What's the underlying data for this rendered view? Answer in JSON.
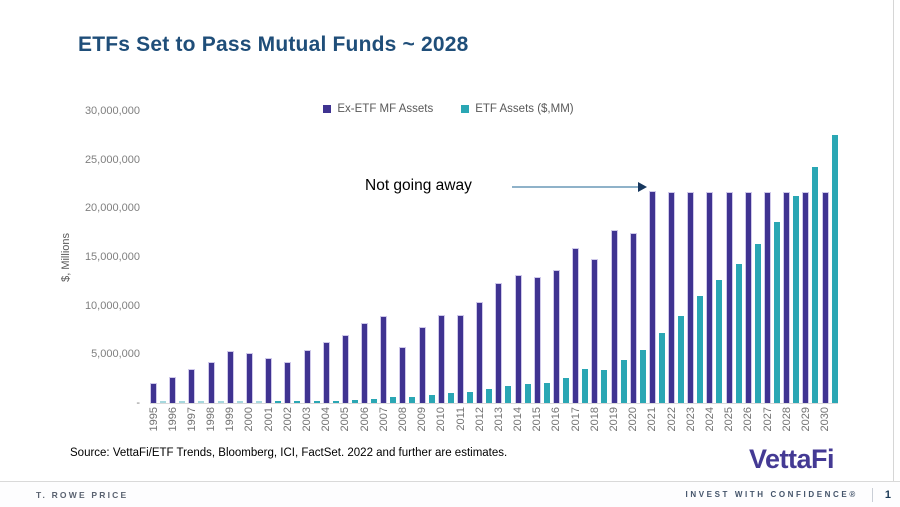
{
  "slide": {
    "title": "ETFs Set to Pass Mutual Funds ~ 2028",
    "annotation_text": "Not going away",
    "source_note": "Source: VettaFi/ETF Trends, Bloomberg, ICI, FactSet. 2022 and further are estimates.",
    "logo_text": "VettaFi"
  },
  "footer": {
    "left_text": "T. ROWE PRICE",
    "right_text": "INVEST WITH CONFIDENCE®",
    "page_number": "1"
  },
  "colors": {
    "title_navy": "#1f4e79",
    "mf_purple": "#3f3391",
    "mf_purple_border": "#cfc9ea",
    "etf_teal": "#2aa7b4",
    "etf_teal_light": "#a6d8de",
    "arrow_line": "#8fb2c9",
    "arrow_head": "#17375e",
    "logo_purple": "#443a94",
    "axis_text_gray": "#7f7f7f"
  },
  "chart_data": {
    "type": "bar",
    "title": "ETFs Set to Pass Mutual Funds ~ 2028",
    "xlabel": "",
    "ylabel": "$, Millions",
    "ylim": [
      0,
      30000000
    ],
    "ytick_labels": [
      "30,000,000",
      "25,000,000",
      "20,000,000",
      "15,000,000",
      "10,000,000",
      "5,000,000",
      "-"
    ],
    "grid": false,
    "legend_position": "top",
    "annotation": {
      "text": "Not going away",
      "arrow_points_to_category": "2021"
    },
    "categories": [
      "1995",
      "1996",
      "1997",
      "1998",
      "1999",
      "2000",
      "2001",
      "2002",
      "2003",
      "2004",
      "2005",
      "2006",
      "2007",
      "2008",
      "2009",
      "2010",
      "2011",
      "2012",
      "2013",
      "2014",
      "2015",
      "2016",
      "2017",
      "2018",
      "2019",
      "2020",
      "2021",
      "2022",
      "2023",
      "2024",
      "2025",
      "2026",
      "2027",
      "2028",
      "2029",
      "2030"
    ],
    "series": [
      {
        "name": "Ex-ETF MF Assets",
        "color": "#3f3391",
        "values": [
          2100000,
          2650000,
          3500000,
          4200000,
          5300000,
          5150000,
          4650000,
          4200000,
          5400000,
          6300000,
          6950000,
          8200000,
          8950000,
          5750000,
          7800000,
          9050000,
          9000000,
          10350000,
          12300000,
          13100000,
          12950000,
          13650000,
          15900000,
          14800000,
          17750000,
          17450000,
          21800000,
          21650000,
          21650000,
          21650000,
          21650000,
          21650000,
          21650000,
          21650000,
          21650000,
          21650000
        ]
      },
      {
        "name": "ETF Assets ($,MM)",
        "color": "#2aa7b4",
        "values": [
          1000,
          2400,
          6700,
          15600,
          34000,
          66000,
          83000,
          102000,
          151000,
          228000,
          300000,
          423000,
          608000,
          600000,
          780000,
          1050000,
          1150000,
          1400000,
          1750000,
          2000000,
          2100000,
          2550000,
          3500000,
          3400000,
          4450000,
          5450000,
          7200000,
          8900000,
          11000000,
          12650000,
          14300000,
          16300000,
          18600000,
          21250000,
          24200000,
          27500000
        ]
      }
    ]
  }
}
